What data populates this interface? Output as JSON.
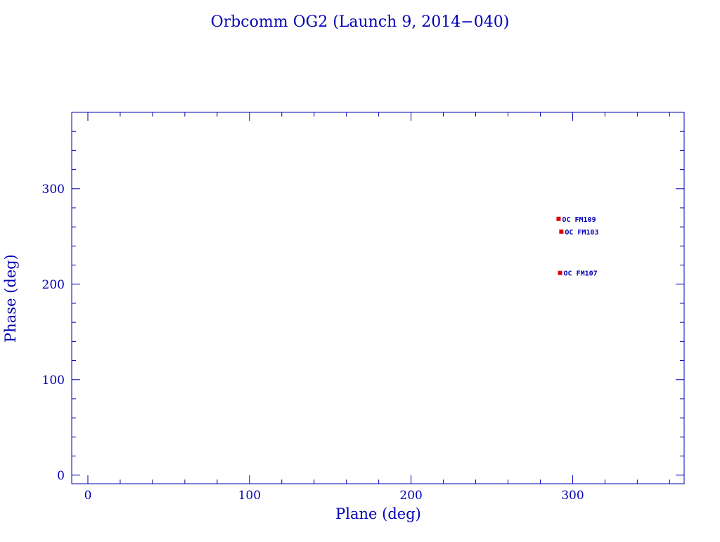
{
  "chart_data": {
    "type": "scatter",
    "title": "Orbcomm OG2 (Launch 9, 2014−040)",
    "xlabel": "Plane (deg)",
    "ylabel": "Phase (deg)",
    "xlim": [
      -10,
      369
    ],
    "ylim": [
      -9,
      380
    ],
    "xticks": [
      "0",
      "100",
      "200",
      "300"
    ],
    "yticks": [
      "0",
      "100",
      "200",
      "300"
    ],
    "grid": false,
    "colors": {
      "axes": "#0000b4",
      "marker": "#dd0000",
      "label": "#0000b4"
    },
    "points": [
      {
        "label": "OC FM109",
        "x": 291.3,
        "y": 268.4
      },
      {
        "label": "OC FM103",
        "x": 293.0,
        "y": 255.1
      },
      {
        "label": "OC FM107",
        "x": 292.2,
        "y": 211.8
      }
    ]
  }
}
